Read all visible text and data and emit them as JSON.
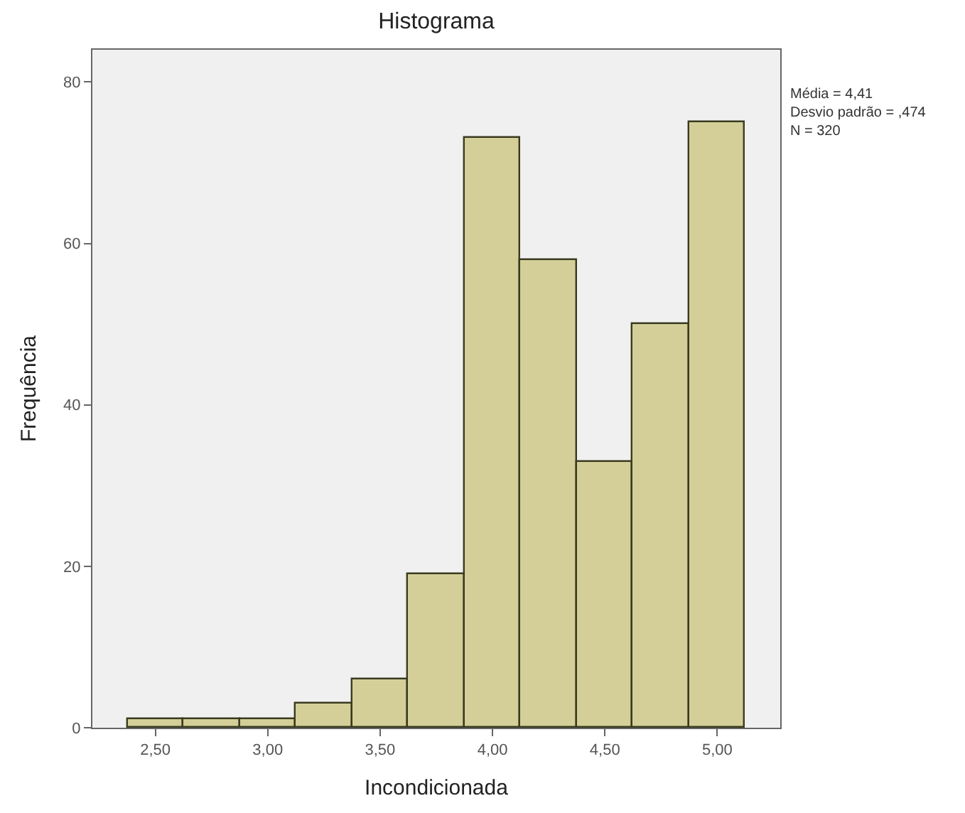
{
  "chart_data": {
    "type": "histogram",
    "title": "Histograma",
    "xlabel": "Incondicionada",
    "ylabel": "Frequência",
    "bins": [
      2.375,
      2.625,
      2.875,
      3.125,
      3.375,
      3.625,
      3.875,
      4.125,
      4.375,
      4.625,
      4.875,
      5.125
    ],
    "values": [
      1,
      1,
      1,
      3,
      6,
      19,
      73,
      58,
      33,
      50,
      75
    ],
    "color": "#d4cf98",
    "xlim": [
      2.22,
      5.28
    ],
    "xticks": [
      {
        "value": 2.5,
        "label": "2,50"
      },
      {
        "value": 3.0,
        "label": "3,00"
      },
      {
        "value": 3.5,
        "label": "3,50"
      },
      {
        "value": 4.0,
        "label": "4,00"
      },
      {
        "value": 4.5,
        "label": "4,50"
      },
      {
        "value": 5.0,
        "label": "5,00"
      }
    ],
    "ylim": [
      0,
      84
    ],
    "yticks": [
      0,
      20,
      40,
      60,
      80
    ],
    "grid": false,
    "legend": false,
    "annotations": [
      "Média = 4,41\nDesvio padrão = ,474\nN = 320"
    ]
  }
}
